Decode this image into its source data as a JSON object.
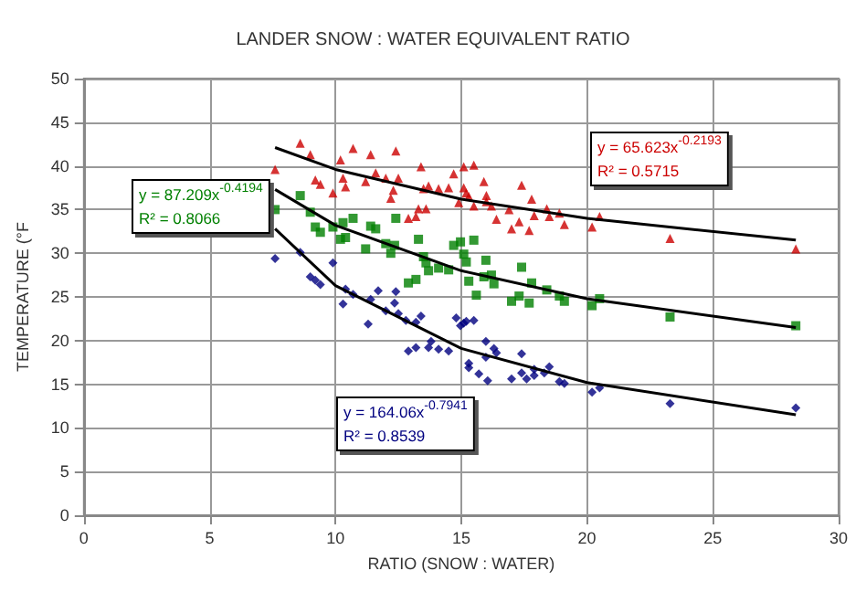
{
  "chart_data": {
    "type": "scatter",
    "title": "LANDER SNOW : WATER EQUIVALENT RATIO",
    "xlabel": "RATIO (SNOW : WATER)",
    "ylabel": "TEMPERATURE (°F",
    "xlim": [
      0,
      30
    ],
    "xticks": [
      0,
      5,
      10,
      15,
      20,
      25,
      30
    ],
    "ylim": [
      0,
      50
    ],
    "yticks": [
      0,
      5,
      10,
      15,
      20,
      25,
      30,
      35,
      40,
      45,
      50
    ],
    "grid": true,
    "annotations": [
      "y = 65.623x$^{-0.2193}$\nR² = 0.5715",
      "y = 87.209x$^{-0.4194}$\nR² = 0.8066",
      "y = 164.06x$^{-0.7941}$\nR² = 0.8539"
    ],
    "series": [
      {
        "marker": "triangle",
        "color": "#cc0000",
        "x": [
          7.6,
          8.6,
          9.0,
          9.2,
          9.4,
          9.9,
          10.2,
          10.3,
          10.4,
          10.7,
          11.2,
          11.4,
          11.6,
          12.0,
          12.2,
          12.3,
          12.4,
          12.5,
          12.9,
          13.2,
          13.3,
          13.4,
          13.5,
          13.6,
          13.7,
          14.1,
          14.5,
          14.7,
          14.9,
          15.1,
          15.1,
          15.2,
          15.3,
          15.5,
          15.5,
          15.9,
          16.0,
          16.0,
          16.2,
          16.4,
          16.9,
          17.0,
          17.3,
          17.4,
          17.7,
          17.8,
          17.9,
          18.4,
          18.5,
          18.9,
          19.1,
          20.2,
          20.5,
          23.3,
          28.3
        ],
        "values": [
          39.6,
          42.6,
          41.3,
          38.4,
          37.9,
          36.9,
          40.7,
          38.6,
          37.6,
          42.0,
          38.2,
          41.3,
          39.2,
          38.6,
          36.3,
          37.2,
          41.7,
          38.6,
          34.0,
          34.2,
          35.1,
          39.9,
          37.4,
          35.1,
          37.7,
          37.4,
          37.5,
          39.1,
          35.8,
          39.9,
          37.5,
          36.9,
          36.5,
          40.1,
          35.4,
          38.2,
          36.6,
          35.9,
          35.4,
          33.9,
          35.0,
          32.8,
          33.6,
          37.8,
          32.6,
          36.2,
          34.3,
          35.1,
          34.2,
          34.6,
          33.3,
          33.0,
          34.2,
          31.7,
          30.5
        ]
      },
      {
        "marker": "square",
        "color": "#008000",
        "x": [
          7.6,
          8.6,
          9.0,
          9.2,
          9.4,
          9.9,
          10.2,
          10.4,
          10.3,
          10.7,
          11.2,
          11.4,
          11.6,
          12.0,
          12.2,
          12.35,
          12.4,
          12.9,
          13.2,
          13.3,
          13.5,
          13.6,
          13.7,
          14.1,
          14.5,
          14.7,
          14.97,
          15.1,
          15.2,
          15.5,
          15.3,
          15.98,
          15.9,
          16.2,
          16.3,
          17.4,
          17.8,
          18.4,
          15.6,
          17.0,
          17.7,
          17.3,
          18.9,
          19.1,
          20.2,
          20.5,
          23.3,
          28.3
        ],
        "values": [
          35.0,
          36.6,
          34.7,
          33.0,
          32.4,
          33.0,
          31.6,
          31.8,
          33.5,
          34.0,
          30.5,
          33.1,
          32.8,
          31.1,
          30.0,
          30.9,
          34.0,
          26.6,
          27.0,
          31.6,
          29.6,
          28.9,
          28.0,
          28.3,
          28.1,
          30.9,
          31.3,
          29.9,
          29.0,
          31.5,
          26.8,
          29.2,
          27.3,
          27.5,
          26.5,
          28.4,
          26.6,
          25.8,
          25.2,
          24.5,
          24.3,
          25.1,
          25.1,
          24.5,
          24.0,
          24.8,
          22.7,
          21.7
        ]
      },
      {
        "marker": "diamond",
        "color": "#000080",
        "x": [
          7.6,
          8.6,
          9.0,
          9.2,
          9.4,
          9.9,
          10.4,
          10.7,
          11.7,
          12.4,
          10.3,
          11.4,
          11.3,
          12.0,
          12.35,
          12.5,
          12.9,
          12.8,
          13.2,
          13.2,
          13.4,
          13.7,
          13.8,
          14.1,
          14.5,
          14.8,
          14.97,
          15.1,
          15.2,
          15.5,
          15.3,
          15.3,
          15.7,
          15.98,
          15.98,
          16.05,
          16.3,
          16.4,
          17.0,
          17.4,
          17.4,
          17.6,
          17.9,
          17.9,
          18.3,
          18.5,
          18.9,
          19.1,
          20.2,
          20.5,
          23.3,
          28.3
        ],
        "values": [
          29.4,
          30.1,
          27.3,
          26.9,
          26.4,
          28.9,
          25.9,
          25.3,
          25.7,
          25.6,
          24.2,
          24.7,
          21.9,
          23.4,
          24.3,
          23.1,
          18.8,
          22.3,
          19.2,
          22.1,
          22.8,
          19.2,
          19.9,
          19.0,
          18.8,
          22.6,
          21.7,
          22.0,
          22.2,
          22.3,
          17.4,
          16.9,
          16.2,
          19.9,
          18.1,
          15.4,
          19.1,
          18.6,
          15.6,
          16.3,
          18.5,
          15.6,
          16.7,
          16.0,
          16.3,
          17.0,
          15.3,
          15.1,
          14.1,
          14.6,
          12.8,
          12.3
        ]
      },
      {
        "type": "line",
        "marker": "none",
        "color": "#000000",
        "x": [
          7.6,
          10,
          15,
          20,
          28.3
        ],
        "values": [
          42.1,
          39.6,
          36.2,
          34.0,
          31.5
        ]
      },
      {
        "type": "line",
        "marker": "none",
        "color": "#000000",
        "x": [
          7.6,
          10,
          15,
          20,
          28.3
        ],
        "values": [
          37.3,
          33.2,
          28.0,
          24.8,
          21.5
        ]
      },
      {
        "type": "line",
        "marker": "none",
        "color": "#000000",
        "x": [
          7.6,
          10,
          15,
          20,
          28.3
        ],
        "values": [
          32.8,
          26.3,
          19.1,
          15.2,
          11.5
        ]
      }
    ]
  }
}
